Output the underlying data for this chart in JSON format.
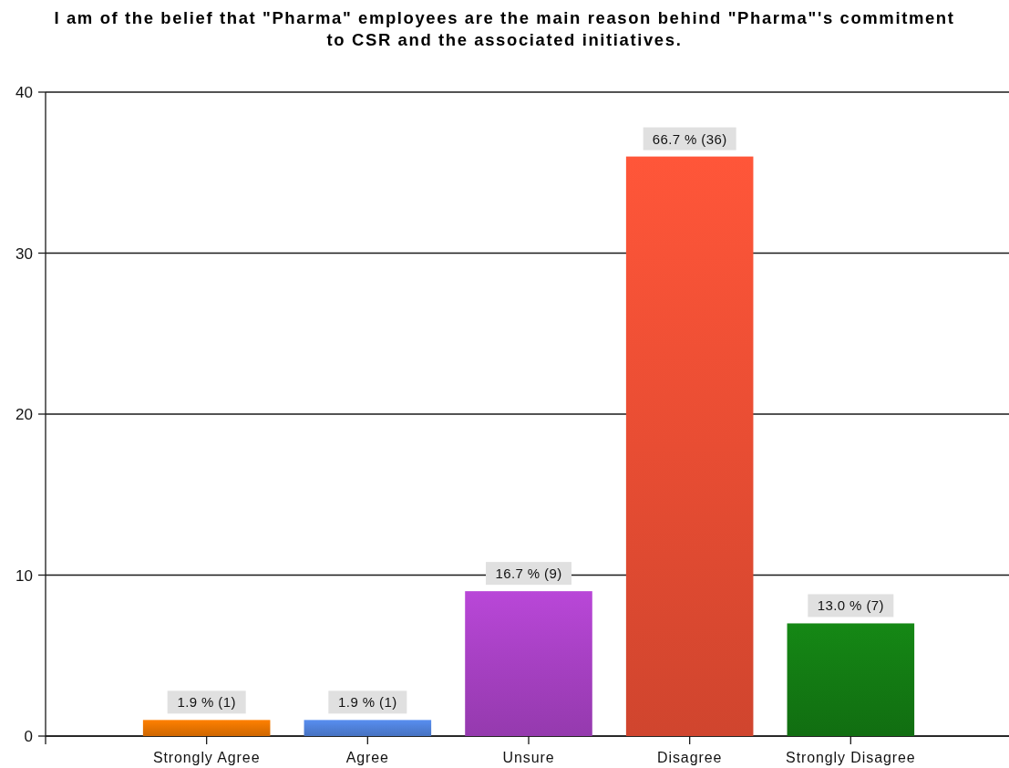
{
  "chart_data": {
    "type": "bar",
    "title": "I am of the belief that \"Pharma\" employees are the main reason behind \"Pharma\"'s commitment to CSR and the associated initiatives.",
    "categories": [
      "Strongly Agree",
      "Agree",
      "Unsure",
      "Disagree",
      "Strongly Disagree"
    ],
    "values": [
      1,
      1,
      9,
      36,
      7
    ],
    "colors": [
      "#e67300",
      "#4f80d8",
      "#a640c2",
      "#e84d33",
      "#137a13"
    ],
    "value_labels": [
      "1.9 % (1)",
      "1.9 % (1)",
      "16.7 % (9)",
      "66.7 % (36)",
      "13.0 % (7)"
    ],
    "ylim": [
      0,
      40
    ],
    "yticks": [
      0,
      10,
      20,
      30,
      40
    ],
    "grid": "y"
  }
}
